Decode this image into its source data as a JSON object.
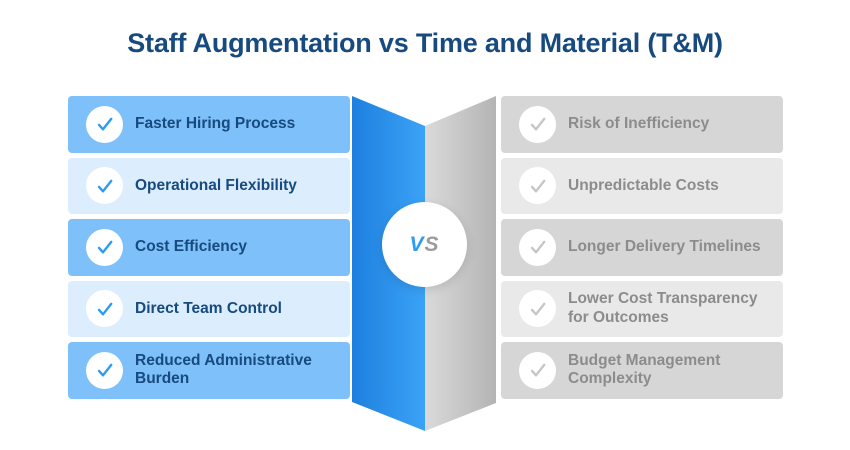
{
  "title": "Staff Augmentation vs Time and Material (T&M)",
  "vs_badge": {
    "v": "V",
    "s": "S"
  },
  "left_panel": {
    "icon": "check-icon",
    "items": [
      "Faster Hiring Process",
      "Operational Flexibility",
      "Cost Efficiency",
      "Direct Team Control",
      "Reduced Administrative Burden"
    ]
  },
  "right_panel": {
    "icon": "check-icon",
    "items": [
      "Risk of Inefficiency",
      "Unpredictable Costs",
      "Longer Delivery Timelines",
      "Lower Cost Transparency for Outcomes",
      "Budget Management Complexity"
    ]
  },
  "colors": {
    "title_text": "#174A7E",
    "left_row_primary": "#7EC0F9",
    "left_row_secondary": "#DCEEFE",
    "left_text": "#174A7E",
    "left_check": "#2E9BF2",
    "right_row_primary": "#D6D6D6",
    "right_row_secondary": "#E9E9E9",
    "right_text": "#8C8C8C",
    "right_check": "#C6C6C6",
    "fold_blue_dark": "#1E7FDE",
    "fold_blue_light": "#3BA3F7",
    "fold_gray_light": "#DADADA",
    "fold_gray_dark": "#B4B4B4",
    "vs_v": "#2E9BF2",
    "vs_s": "#9B9B9B"
  }
}
